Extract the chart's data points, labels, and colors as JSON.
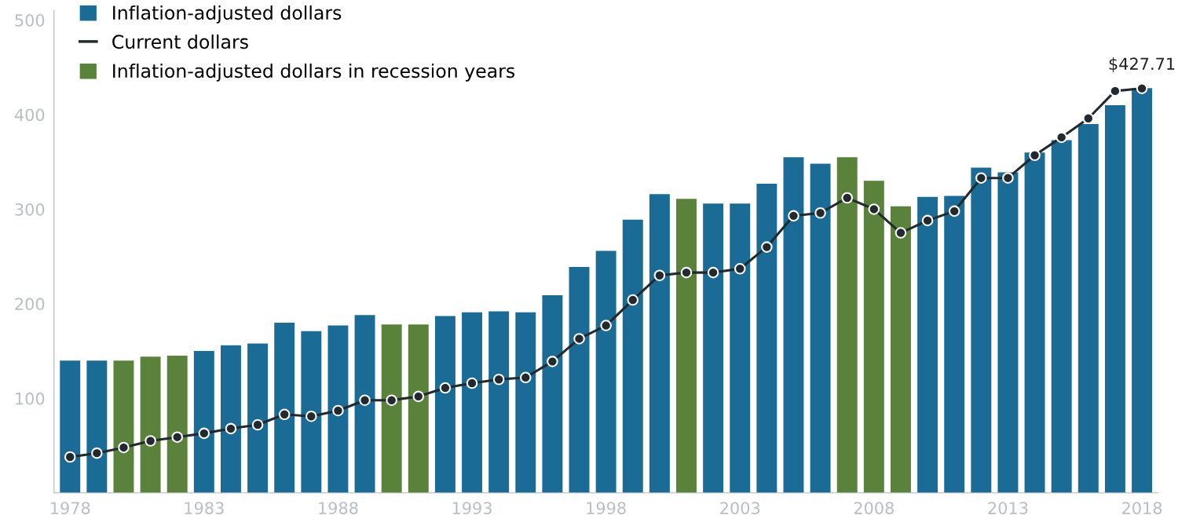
{
  "chart_data": {
    "type": "bar",
    "x": [
      1978,
      1979,
      1980,
      1981,
      1982,
      1983,
      1984,
      1985,
      1986,
      1987,
      1988,
      1989,
      1990,
      1991,
      1992,
      1993,
      1994,
      1995,
      1996,
      1997,
      1998,
      1999,
      2000,
      2001,
      2002,
      2003,
      2004,
      2005,
      2006,
      2007,
      2008,
      2009,
      2010,
      2011,
      2012,
      2013,
      2014,
      2015,
      2016,
      2017,
      2018
    ],
    "series": [
      {
        "name": "Inflation-adjusted dollars",
        "color": "#1a6b96",
        "values": [
          140,
          140,
          null,
          null,
          null,
          150,
          156,
          158,
          180,
          171,
          177,
          188,
          null,
          null,
          187,
          191,
          192,
          191,
          209,
          239,
          256,
          289,
          316,
          null,
          306,
          306,
          327,
          355,
          348,
          null,
          null,
          null,
          313,
          314,
          344,
          339,
          360,
          373,
          390,
          410,
          428
        ]
      },
      {
        "name": "Current dollars",
        "type": "line",
        "color": "#222a30",
        "marker": "circle",
        "values": [
          38,
          42,
          48,
          55,
          59,
          63,
          68,
          72,
          83,
          81,
          87,
          98,
          98,
          102,
          111,
          116,
          120,
          122,
          139,
          163,
          177,
          204,
          230,
          233,
          233,
          237,
          260,
          293,
          296,
          312,
          300,
          275,
          288,
          298,
          333,
          333,
          357,
          376,
          396,
          425,
          427.71
        ]
      },
      {
        "name": "Inflation-adjusted dollars in recession years",
        "color": "#5b823a",
        "values": [
          null,
          null,
          140,
          144,
          145,
          null,
          null,
          null,
          null,
          null,
          null,
          null,
          178,
          178,
          null,
          null,
          null,
          null,
          null,
          null,
          null,
          null,
          null,
          311,
          null,
          null,
          null,
          null,
          null,
          355,
          330,
          303,
          null,
          null,
          null,
          null,
          null,
          null,
          null,
          null,
          null
        ]
      }
    ],
    "xlim": [
      1977.4,
      2018.6
    ],
    "xticks": [
      1978,
      1983,
      1988,
      1993,
      1998,
      2003,
      2008,
      2013,
      2018
    ],
    "ylim": [
      0,
      510
    ],
    "yticks": [
      100,
      200,
      300,
      400,
      500
    ],
    "grid": false,
    "legend": "top left",
    "annotations": [
      {
        "text": "$427.71",
        "x": 2018,
        "y": 427.71
      }
    ]
  }
}
